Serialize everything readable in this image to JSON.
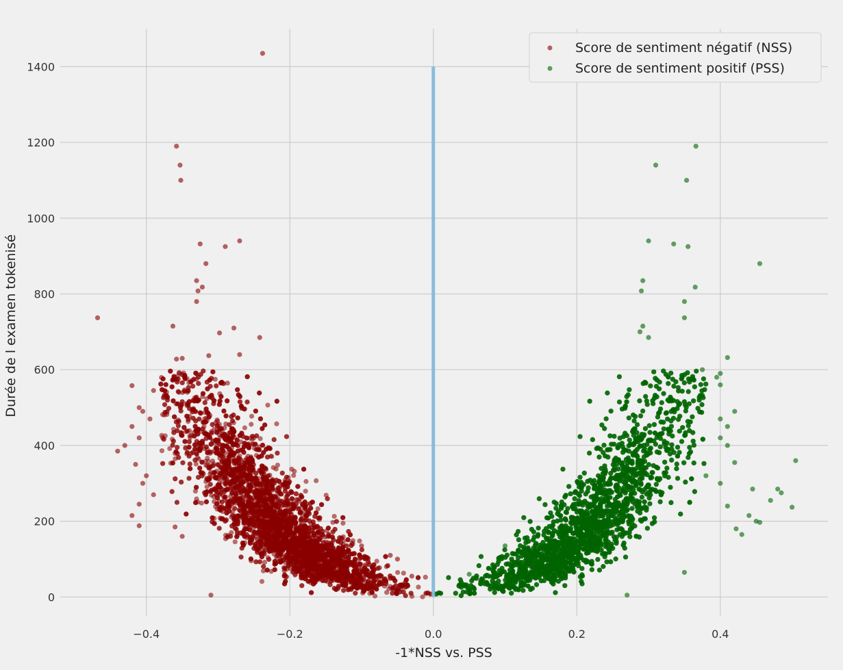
{
  "chart_data": {
    "type": "scatter",
    "title": "",
    "xlabel": "-1*NSS vs. PSS",
    "ylabel": "Durée de l examen tokenisé",
    "xlim": [
      -0.52,
      0.55
    ],
    "ylim": [
      -50,
      1500
    ],
    "x_ticks": [
      -0.4,
      -0.2,
      0.0,
      0.2,
      0.4
    ],
    "x_tick_labels": [
      "−0.4",
      "−0.2",
      "0.0",
      "0.2",
      "0.4"
    ],
    "y_ticks": [
      0,
      200,
      400,
      600,
      800,
      1000,
      1200,
      1400
    ],
    "y_tick_labels": [
      "0",
      "200",
      "400",
      "600",
      "800",
      "1000",
      "1200",
      "1400"
    ],
    "grid": true,
    "legend_position": "top-right",
    "vertical_line": {
      "x": 0.0,
      "y_from": 0,
      "y_to": 1400,
      "color": "#7fb8d8"
    },
    "series": [
      {
        "name": "Score de sentiment négatif (NSS)",
        "color": "#8b0000",
        "points": [
          [
            -0.238,
            1435
          ],
          [
            -0.358,
            1190
          ],
          [
            -0.353,
            1140
          ],
          [
            -0.352,
            1100
          ],
          [
            -0.27,
            940
          ],
          [
            -0.29,
            925
          ],
          [
            -0.325,
            932
          ],
          [
            -0.317,
            880
          ],
          [
            -0.33,
            835
          ],
          [
            -0.322,
            818
          ],
          [
            -0.328,
            808
          ],
          [
            -0.33,
            780
          ],
          [
            -0.468,
            737
          ],
          [
            -0.363,
            715
          ],
          [
            -0.278,
            710
          ],
          [
            -0.298,
            697
          ],
          [
            -0.242,
            685
          ],
          [
            -0.27,
            640
          ],
          [
            -0.313,
            637
          ],
          [
            -0.35,
            630
          ],
          [
            -0.358,
            628
          ],
          [
            -0.42,
            558
          ],
          [
            -0.39,
            545
          ],
          [
            -0.41,
            500
          ],
          [
            -0.405,
            490
          ],
          [
            -0.395,
            470
          ],
          [
            -0.42,
            450
          ],
          [
            -0.41,
            420
          ],
          [
            -0.43,
            400
          ],
          [
            -0.44,
            385
          ],
          [
            -0.415,
            350
          ],
          [
            -0.4,
            320
          ],
          [
            -0.405,
            300
          ],
          [
            -0.39,
            270
          ],
          [
            -0.41,
            245
          ],
          [
            -0.42,
            215
          ],
          [
            -0.41,
            188
          ],
          [
            -0.35,
            160
          ],
          [
            -0.36,
            185
          ],
          [
            -0.31,
            5
          ],
          [
            -0.1,
            135
          ],
          [
            -0.06,
            110
          ],
          [
            -0.05,
            100
          ],
          [
            -0.03,
            55
          ]
        ]
      },
      {
        "name": "Score de sentiment positif (PSS)",
        "color": "#006400",
        "points": [
          [
            0.366,
            1190
          ],
          [
            0.31,
            1140
          ],
          [
            0.353,
            1100
          ],
          [
            0.3,
            940
          ],
          [
            0.335,
            932
          ],
          [
            0.355,
            925
          ],
          [
            0.455,
            880
          ],
          [
            0.292,
            835
          ],
          [
            0.365,
            818
          ],
          [
            0.29,
            808
          ],
          [
            0.35,
            780
          ],
          [
            0.35,
            737
          ],
          [
            0.292,
            715
          ],
          [
            0.288,
            700
          ],
          [
            0.3,
            685
          ],
          [
            0.41,
            632
          ],
          [
            0.375,
            600
          ],
          [
            0.4,
            590
          ],
          [
            0.395,
            580
          ],
          [
            0.4,
            560
          ],
          [
            0.42,
            490
          ],
          [
            0.4,
            470
          ],
          [
            0.41,
            450
          ],
          [
            0.4,
            420
          ],
          [
            0.41,
            400
          ],
          [
            0.505,
            360
          ],
          [
            0.42,
            355
          ],
          [
            0.38,
            320
          ],
          [
            0.4,
            300
          ],
          [
            0.445,
            285
          ],
          [
            0.48,
            285
          ],
          [
            0.485,
            275
          ],
          [
            0.47,
            255
          ],
          [
            0.5,
            237
          ],
          [
            0.41,
            240
          ],
          [
            0.44,
            215
          ],
          [
            0.45,
            200
          ],
          [
            0.455,
            197
          ],
          [
            0.422,
            180
          ],
          [
            0.43,
            165
          ],
          [
            0.35,
            65
          ],
          [
            0.27,
            5
          ],
          [
            0.1,
            135
          ],
          [
            0.05,
            60
          ]
        ]
      }
    ]
  }
}
